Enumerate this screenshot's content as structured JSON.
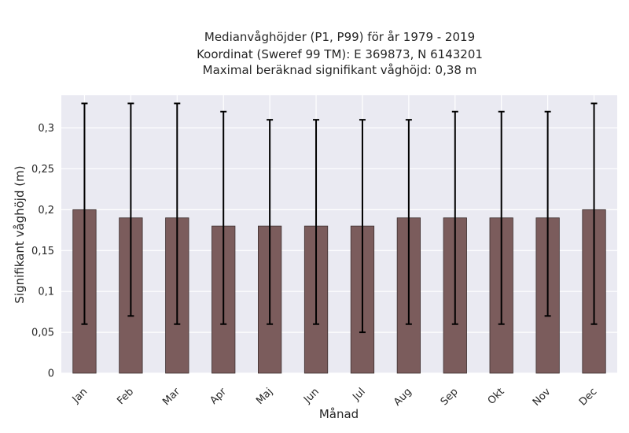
{
  "chart_data": {
    "type": "bar",
    "title_lines": [
      "Medianvåghöjder (P1, P99) för år 1979 - 2019",
      "Koordinat (Sweref 99 TM): E 369873, N 6143201",
      "Maximal beräknad signifikant våghöjd: 0,38 m"
    ],
    "xlabel": "Månad",
    "ylabel": "Signifikant våghöjd (m)",
    "categories": [
      "Jan",
      "Feb",
      "Mar",
      "Apr",
      "Maj",
      "Jun",
      "Jul",
      "Aug",
      "Sep",
      "Okt",
      "Nov",
      "Dec"
    ],
    "values": [
      0.2,
      0.19,
      0.19,
      0.18,
      0.18,
      0.18,
      0.18,
      0.19,
      0.19,
      0.19,
      0.19,
      0.2
    ],
    "p1": [
      0.06,
      0.07,
      0.06,
      0.06,
      0.06,
      0.06,
      0.05,
      0.06,
      0.06,
      0.06,
      0.07,
      0.06
    ],
    "p99": [
      0.33,
      0.33,
      0.33,
      0.32,
      0.31,
      0.31,
      0.31,
      0.31,
      0.32,
      0.32,
      0.32,
      0.33
    ],
    "ylim": [
      0,
      0.34
    ],
    "yticks": [
      0,
      0.05,
      0.1,
      0.15,
      0.2,
      0.25,
      0.3
    ],
    "ytick_labels": [
      "0",
      "0,05",
      "0,1",
      "0,15",
      "0,2",
      "0,25",
      "0,3"
    ],
    "grid": true,
    "colors": {
      "bar": "#7b5c5c",
      "bar_edge": "#3d2f2f",
      "error_bar": "#000000",
      "plot_background": "#eaeaf2",
      "grid": "#ffffff"
    }
  }
}
